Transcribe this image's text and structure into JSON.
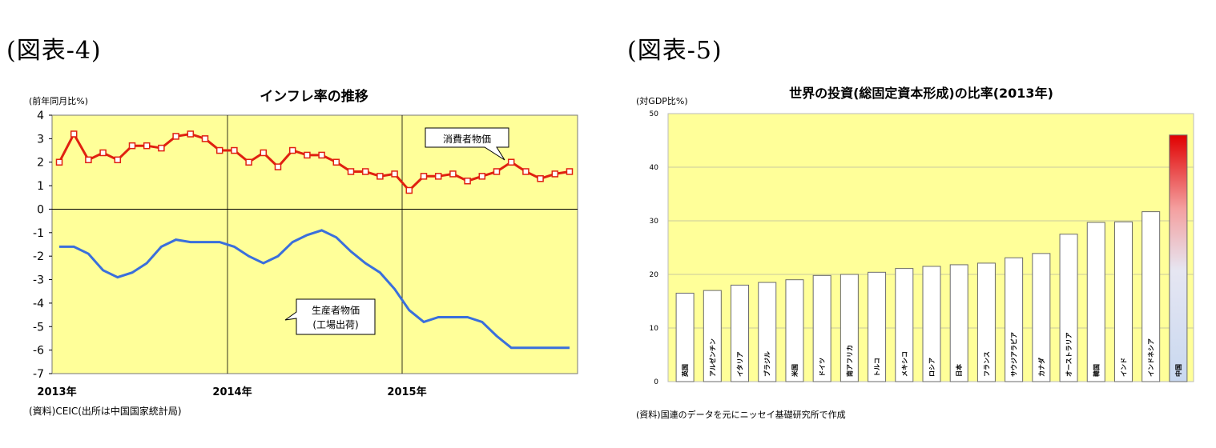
{
  "figures": {
    "left_label": "(図表-4)",
    "right_label": "(図表-5)"
  },
  "colors": {
    "plot_bg": "#ffff99",
    "cpi_line": "#e02010",
    "ppi_line": "#3a6fdc",
    "bar_fill": "#ffffff",
    "bar_edge": "#6b6b6b",
    "highlight_top": "#e00000",
    "highlight_bottom": "#c8d8f0"
  },
  "chart_data": [
    {
      "type": "line",
      "title": "インフレ率の推移",
      "ylabel": "(前年同月比%)",
      "ylim": [
        -7,
        4
      ],
      "yticks": [
        "4",
        "3",
        "2",
        "1",
        "0",
        "-1",
        "-2",
        "-3",
        "-4",
        "-5",
        "-6",
        "-7"
      ],
      "xtick_labels": [
        "2013年",
        "2014年",
        "2015年"
      ],
      "source": "(資料)CEIC(出所は中国国家統計局)",
      "grid": false,
      "series": [
        {
          "name": "消費者物価",
          "callout": "消費者物価",
          "values": [
            2.0,
            3.2,
            2.1,
            2.4,
            2.1,
            2.7,
            2.7,
            2.6,
            3.1,
            3.2,
            3.0,
            2.5,
            2.5,
            2.0,
            2.4,
            1.8,
            2.5,
            2.3,
            2.3,
            2.0,
            1.6,
            1.6,
            1.4,
            1.5,
            0.8,
            1.4,
            1.4,
            1.5,
            1.2,
            1.4,
            1.6,
            2.0,
            1.6,
            1.3,
            1.5,
            1.6
          ]
        },
        {
          "name": "生産者物価(工場出荷)",
          "callout_line1": "生産者物価",
          "callout_line2": "(工場出荷)",
          "values": [
            -1.6,
            -1.6,
            -1.9,
            -2.6,
            -2.9,
            -2.7,
            -2.3,
            -1.6,
            -1.3,
            -1.4,
            -1.4,
            -1.4,
            -1.6,
            -2.0,
            -2.3,
            -2.0,
            -1.4,
            -1.1,
            -0.9,
            -1.2,
            -1.8,
            -2.3,
            -2.7,
            -3.4,
            -4.3,
            -4.8,
            -4.6,
            -4.6,
            -4.6,
            -4.8,
            -5.4,
            -5.9,
            -5.9,
            -5.9,
            -5.9,
            -5.9
          ]
        }
      ]
    },
    {
      "type": "bar",
      "title": "世界の投資(総固定資本形成)の比率(2013年)",
      "ylabel": "(対GDP比%)",
      "ylim": [
        0,
        50
      ],
      "yticks": [
        "50",
        "40",
        "30",
        "20",
        "10",
        "0"
      ],
      "grid": true,
      "source": "(資料)国連のデータを元にニッセイ基礎研究所で作成",
      "categories": [
        "英国",
        "アルゼンチン",
        "イタリア",
        "ブラジル",
        "米国",
        "ドイツ",
        "南アフリカ",
        "トルコ",
        "メキシコ",
        "ロシア",
        "日本",
        "フランス",
        "サウジアラビア",
        "カナダ",
        "オーストラリア",
        "韓国",
        "インド",
        "インドネシア",
        "中国"
      ],
      "values": [
        16.5,
        17.0,
        18.0,
        18.5,
        19.0,
        19.8,
        20.0,
        20.4,
        21.1,
        21.5,
        21.8,
        22.1,
        23.1,
        23.9,
        27.5,
        29.7,
        29.8,
        31.7,
        46.0
      ],
      "highlight_index": 18
    }
  ]
}
